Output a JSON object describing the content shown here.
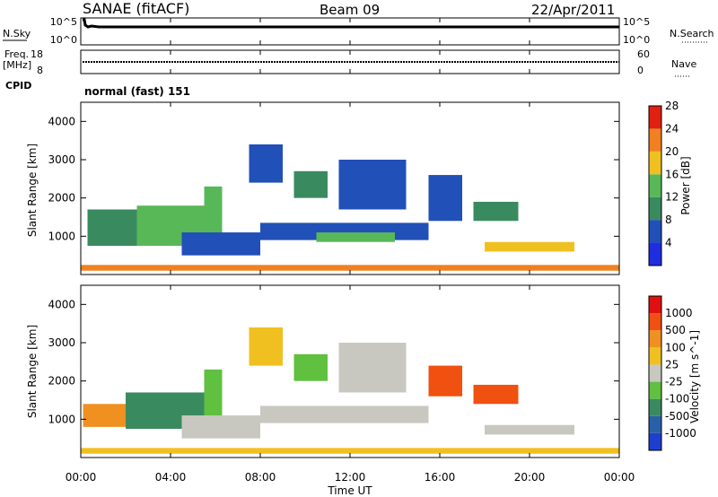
{
  "header": {
    "station": "SANAE (fitACF)",
    "beam": "Beam 09",
    "date": "22/Apr/2011"
  },
  "summary": {
    "nsky_label": "N.Sky",
    "nsky_ticks": [
      "10^5",
      "10^0"
    ],
    "nsearch_label": "N.Search",
    "nsearch_ticks": [
      "10^5",
      "10^0"
    ],
    "freq_label_1": "Freq.",
    "freq_label_2": "[MHz]",
    "freq_ticks": [
      "18",
      "8"
    ],
    "nave_label": "Nave",
    "nave_ticks": [
      "60",
      "0"
    ],
    "cpid_label": "CPID",
    "cpid_value": "normal (fast) 151"
  },
  "power_colorbar": {
    "label": "Power [dB]",
    "ticks": [
      "4",
      "8",
      "12",
      "16",
      "20",
      "24",
      "28"
    ],
    "colors": [
      "#1f2de0",
      "#2050b8",
      "#3a8a60",
      "#58b858",
      "#f0c020",
      "#f08020",
      "#e02010"
    ]
  },
  "velocity_colorbar": {
    "label": "Velocity [m s^-1]",
    "ticks": [
      "1000",
      "500",
      "100",
      "25",
      "-25",
      "-100",
      "-500",
      "-1000"
    ],
    "colors": [
      "#1e3ed0",
      "#2a60a8",
      "#3a8a60",
      "#60c040",
      "#c8c8c0",
      "#f0c020",
      "#f09020",
      "#f05010",
      "#e01010"
    ]
  },
  "chart_data": [
    {
      "type": "heatmap",
      "title": "Power",
      "ylabel": "Slant Range [km]",
      "yticks": [
        "1000",
        "2000",
        "3000",
        "4000"
      ],
      "ylim": [
        0,
        4500
      ],
      "xlim": [
        0,
        24
      ],
      "xlabel": "Time UT",
      "xticks": [
        "00:00",
        "04:00",
        "08:00",
        "12:00",
        "16:00",
        "20:00",
        "00:00"
      ],
      "regions": [
        {
          "t0": 0.3,
          "t1": 2.5,
          "r0": 750,
          "r1": 1700,
          "level": 2
        },
        {
          "t0": 2.5,
          "t1": 5.8,
          "r0": 750,
          "r1": 1800,
          "level": 3
        },
        {
          "t0": 5.5,
          "t1": 6.3,
          "r0": 1000,
          "r1": 2300,
          "level": 3
        },
        {
          "t0": 4.5,
          "t1": 8.0,
          "r0": 500,
          "r1": 1100,
          "level": 1
        },
        {
          "t0": 8.0,
          "t1": 15.5,
          "r0": 900,
          "r1": 1350,
          "level": 1
        },
        {
          "t0": 10.5,
          "t1": 14.0,
          "r0": 850,
          "r1": 1100,
          "level": 3
        },
        {
          "t0": 7.5,
          "t1": 9.0,
          "r0": 2400,
          "r1": 3400,
          "level": 1
        },
        {
          "t0": 9.5,
          "t1": 11.0,
          "r0": 2000,
          "r1": 2700,
          "level": 2
        },
        {
          "t0": 11.5,
          "t1": 14.5,
          "r0": 1700,
          "r1": 3000,
          "level": 1
        },
        {
          "t0": 15.5,
          "t1": 17.0,
          "r0": 1400,
          "r1": 2600,
          "level": 1
        },
        {
          "t0": 17.5,
          "t1": 19.5,
          "r0": 1400,
          "r1": 1900,
          "level": 2
        },
        {
          "t0": 18.0,
          "t1": 22.0,
          "r0": 600,
          "r1": 850,
          "level": 4
        },
        {
          "t0": 0,
          "t1": 24,
          "r0": 100,
          "r1": 250,
          "level": 5
        }
      ]
    },
    {
      "type": "heatmap",
      "title": "Velocity",
      "ylabel": "Slant Range [km]",
      "yticks": [
        "1000",
        "2000",
        "3000",
        "4000"
      ],
      "ylim": [
        0,
        4500
      ],
      "xlim": [
        0,
        24
      ],
      "xlabel": "Time UT",
      "xticks": [
        "00:00",
        "04:00",
        "08:00",
        "12:00",
        "16:00",
        "20:00",
        "00:00"
      ],
      "regions": [
        {
          "t0": 0.1,
          "t1": 2.0,
          "r0": 800,
          "r1": 1400,
          "level": 6
        },
        {
          "t0": 2.0,
          "t1": 5.8,
          "r0": 750,
          "r1": 1700,
          "level": 2
        },
        {
          "t0": 5.5,
          "t1": 6.3,
          "r0": 1000,
          "r1": 2300,
          "level": 3
        },
        {
          "t0": 4.5,
          "t1": 8.0,
          "r0": 500,
          "r1": 1100,
          "level": 4
        },
        {
          "t0": 8.0,
          "t1": 15.5,
          "r0": 900,
          "r1": 1350,
          "level": 4
        },
        {
          "t0": 7.5,
          "t1": 9.0,
          "r0": 2400,
          "r1": 3400,
          "level": 5
        },
        {
          "t0": 9.5,
          "t1": 11.0,
          "r0": 2000,
          "r1": 2700,
          "level": 3
        },
        {
          "t0": 11.5,
          "t1": 14.5,
          "r0": 1700,
          "r1": 3000,
          "level": 4
        },
        {
          "t0": 15.5,
          "t1": 17.0,
          "r0": 1600,
          "r1": 2400,
          "level": 7
        },
        {
          "t0": 17.5,
          "t1": 19.5,
          "r0": 1400,
          "r1": 1900,
          "level": 7
        },
        {
          "t0": 18.0,
          "t1": 22.0,
          "r0": 600,
          "r1": 850,
          "level": 4
        },
        {
          "t0": 0,
          "t1": 24,
          "r0": 100,
          "r1": 250,
          "level": 5
        }
      ]
    }
  ]
}
